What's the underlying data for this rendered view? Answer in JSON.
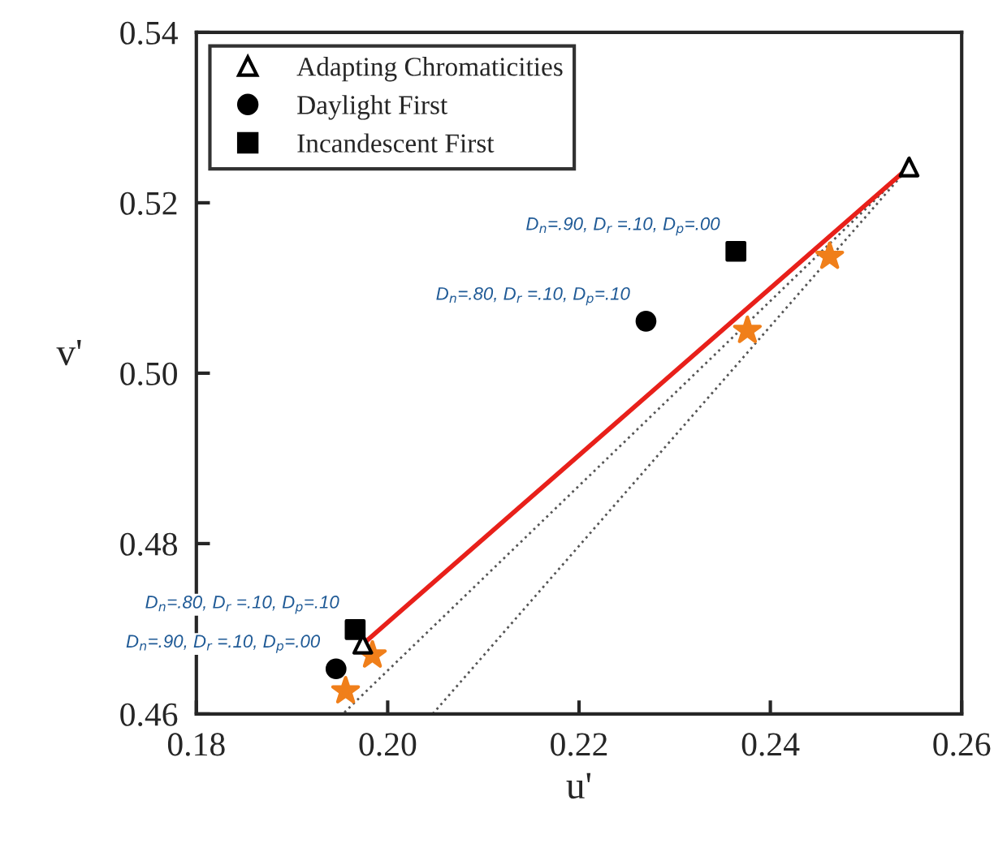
{
  "chart_data": {
    "type": "scatter",
    "xlabel": "u'",
    "ylabel": "v'",
    "xlim": [
      0.18,
      0.26
    ],
    "ylim": [
      0.46,
      0.54
    ],
    "xticks": [
      {
        "value": 0.18,
        "label": "0.18"
      },
      {
        "value": 0.2,
        "label": "0.20"
      },
      {
        "value": 0.22,
        "label": "0.22"
      },
      {
        "value": 0.24,
        "label": "0.24"
      },
      {
        "value": 0.26,
        "label": "0.26"
      }
    ],
    "yticks": [
      {
        "value": 0.46,
        "label": "0.46"
      },
      {
        "value": 0.48,
        "label": "0.48"
      },
      {
        "value": 0.5,
        "label": "0.50"
      },
      {
        "value": 0.52,
        "label": "0.52"
      },
      {
        "value": 0.54,
        "label": "0.54"
      }
    ],
    "grid": false,
    "legend": "top left",
    "series": [
      {
        "type": "line",
        "color": "#555555",
        "line_style": "dotted",
        "marker": "none",
        "x": [
          0.2545,
          0.1953
        ],
        "values": [
          0.5242,
          0.46
        ]
      },
      {
        "type": "line",
        "color": "#555555",
        "line_style": "dotted",
        "marker": "none",
        "x": [
          0.2545,
          0.2047
        ],
        "values": [
          0.5242,
          0.46
        ]
      },
      {
        "type": "line",
        "color": "#e8201a",
        "line_style": "solid",
        "marker": "none",
        "x": [
          0.1974,
          0.2545
        ],
        "values": [
          0.4682,
          0.5242
        ]
      },
      {
        "name": "Adapting Chromaticities",
        "color": "#000000",
        "marker": "triangle",
        "x": [
          0.2545,
          0.1974
        ],
        "values": [
          0.5242,
          0.4682
        ]
      },
      {
        "name": "Daylight First",
        "color": "#000000",
        "marker": "circle",
        "x": [
          0.227,
          0.1946
        ],
        "values": [
          0.5061,
          0.4653
        ]
      },
      {
        "name": "Incandescent First",
        "color": "#000000",
        "marker": "square",
        "x": [
          0.2364,
          0.1966
        ],
        "values": [
          0.5143,
          0.4699
        ]
      },
      {
        "color": "#f07f1a",
        "marker": "star",
        "x": [
          0.2462,
          0.2376,
          0.1984,
          0.1956
        ],
        "values": [
          0.5137,
          0.505,
          0.4669,
          0.4627
        ]
      }
    ],
    "annotations": [
      {
        "text": "D$_{n}$=.90, D$_{r}$ =.10, D$_{p}$=.00",
        "x": 0.2364,
        "y": 0.5143
      },
      {
        "text": "D$_{n}$=.80, D$_{r}$ =.10, D$_{p}$=.10",
        "x": 0.227,
        "y": 0.5061
      },
      {
        "text": "D$_{n}$=.80, D$_{r}$ =.10, D$_{p}$=.10",
        "x": 0.1966,
        "y": 0.4699
      },
      {
        "text": "D$_{n}$=.90, D$_{r}$ =.10, D$_{p}$=.00",
        "x": 0.1946,
        "y": 0.4653
      }
    ]
  }
}
